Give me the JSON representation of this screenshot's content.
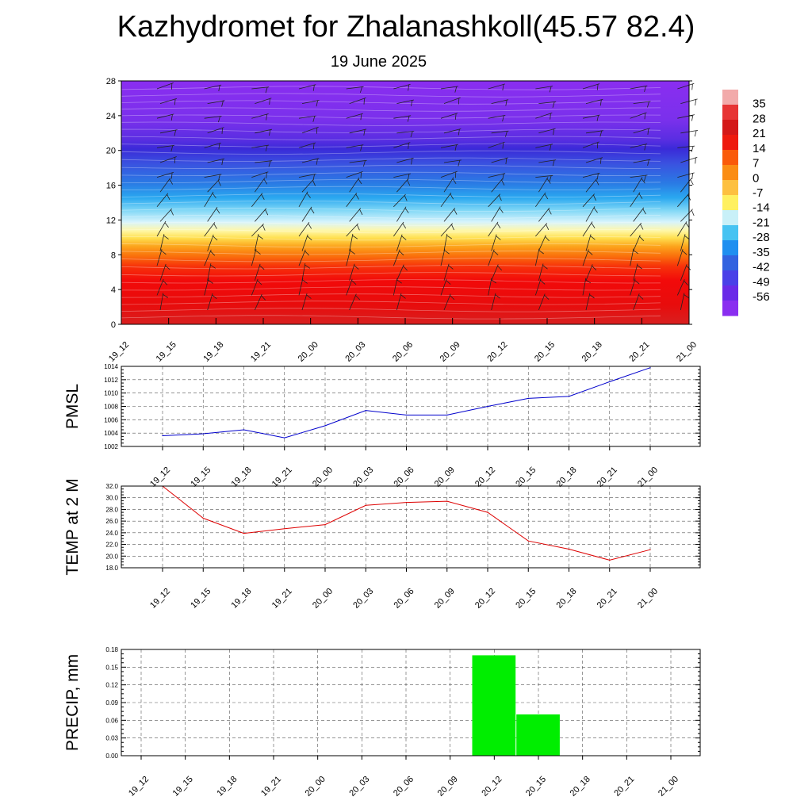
{
  "title": "Kazhydromet for Zhalanashkoll(45.57 82.4)",
  "subtitle": "19 June 2025",
  "time_labels": [
    "19_12",
    "19_15",
    "19_18",
    "19_21",
    "20_00",
    "20_03",
    "20_06",
    "20_09",
    "20_12",
    "20_15",
    "20_18",
    "20_21",
    "21_00"
  ],
  "colorbar": {
    "labels": [
      "35",
      "28",
      "21",
      "14",
      "7",
      "0",
      "-7",
      "-14",
      "-21",
      "-28",
      "-35",
      "-42",
      "-49",
      "-56"
    ],
    "colors": [
      "#f2aaaa",
      "#e73434",
      "#d41818",
      "#ee1a0e",
      "#fa5a0a",
      "#fb8d14",
      "#fdc040",
      "#fff060",
      "#c8f0f8",
      "#46c3f2",
      "#1f8ff0",
      "#3263e0",
      "#4a40e8",
      "#6a2ae8",
      "#8a2ef0"
    ]
  },
  "chart_data": [
    {
      "type": "heatmap",
      "title": "",
      "xlabel": "",
      "ylabel": "",
      "x": [
        "19_12",
        "19_15",
        "19_18",
        "19_21",
        "20_00",
        "20_03",
        "20_06",
        "20_09",
        "20_12",
        "20_15",
        "20_18",
        "20_21",
        "21_00"
      ],
      "ylim": [
        0,
        28
      ],
      "yticks": [
        0,
        4,
        8,
        12,
        16,
        20,
        24,
        28
      ],
      "value_range": [
        -56,
        35
      ],
      "overlay": "wind barbs"
    },
    {
      "type": "line",
      "ylabel": "PMSL",
      "x": [
        "19_12",
        "19_15",
        "19_18",
        "19_21",
        "20_00",
        "20_03",
        "20_06",
        "20_09",
        "20_12",
        "20_15",
        "20_18",
        "20_21",
        "21_00"
      ],
      "ylim": [
        1002,
        1014
      ],
      "yticks": [
        1002,
        1004,
        1006,
        1008,
        1010,
        1012,
        1014
      ],
      "ytick_labels": [
        "1002",
        "1004",
        "1006",
        "1008",
        "1010",
        "1012",
        "1014"
      ],
      "series": [
        {
          "values": [
            1003.6,
            1003.9,
            1004.5,
            1003.3,
            1005.1,
            1007.4,
            1006.7,
            1006.7,
            1008.0,
            1009.2,
            1009.5,
            1011.7,
            1013.8
          ],
          "color": "#0000cc"
        }
      ],
      "grid": true
    },
    {
      "type": "line",
      "ylabel": "TEMP at 2 M",
      "x": [
        "19_12",
        "19_15",
        "19_18",
        "19_21",
        "20_00",
        "20_03",
        "20_06",
        "20_09",
        "20_12",
        "20_15",
        "20_18",
        "20_21",
        "21_00"
      ],
      "ylim": [
        18,
        32
      ],
      "yticks": [
        18,
        20,
        22,
        24,
        26,
        28,
        30,
        32
      ],
      "ytick_labels": [
        "18.0",
        "20.0",
        "22.0",
        "24.0",
        "26.0",
        "28.0",
        "30.0",
        "32.0"
      ],
      "series": [
        {
          "values": [
            32.0,
            26.5,
            23.9,
            24.7,
            25.4,
            28.7,
            29.2,
            29.4,
            27.5,
            22.6,
            21.2,
            19.3,
            21.1
          ],
          "color": "#dd0000"
        }
      ],
      "grid": true
    },
    {
      "type": "bar",
      "ylabel": "PRECIP, mm",
      "categories": [
        "19_12",
        "19_15",
        "19_18",
        "19_21",
        "20_00",
        "20_03",
        "20_06",
        "20_09",
        "20_12",
        "20_15",
        "20_18",
        "20_21",
        "21_00"
      ],
      "values": [
        0,
        0,
        0,
        0,
        0,
        0,
        0,
        0,
        0.17,
        0.07,
        0,
        0,
        0
      ],
      "ylim": [
        0,
        0.18
      ],
      "yticks": [
        0,
        0.03,
        0.06,
        0.09,
        0.12,
        0.15,
        0.18
      ],
      "ytick_labels": [
        "0.00",
        "0.03",
        "0.06",
        "0.09",
        "0.12",
        "0.15",
        "0.18"
      ],
      "bar_color": "#00ee00",
      "grid": true
    }
  ]
}
